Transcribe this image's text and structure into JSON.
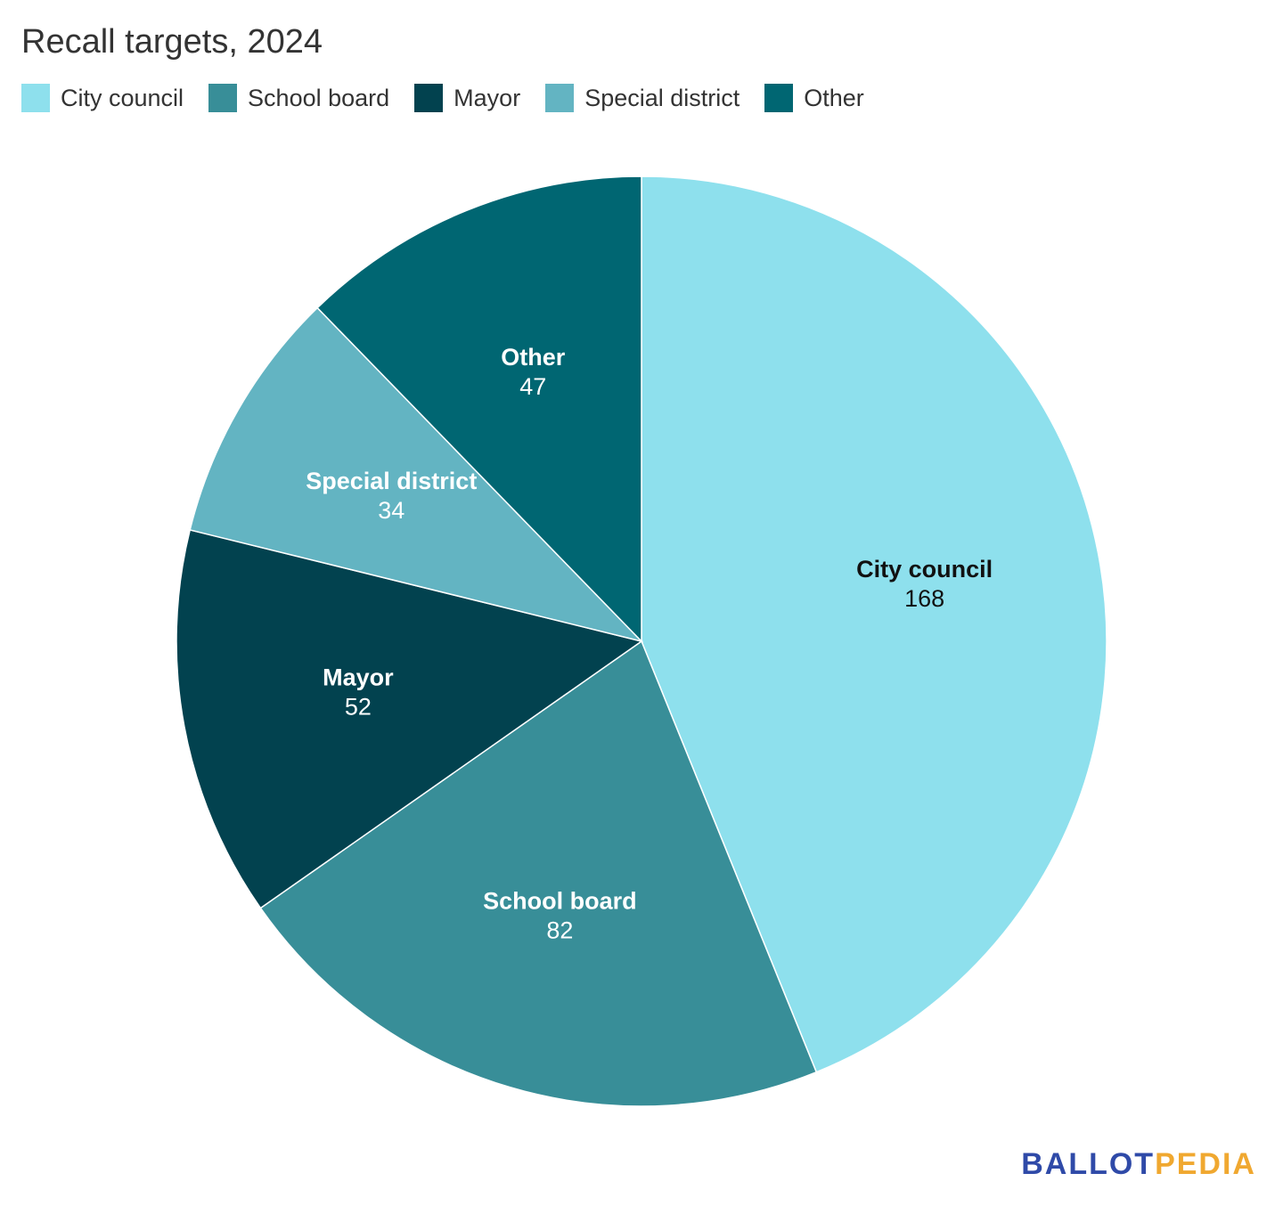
{
  "chart_data": {
    "type": "pie",
    "title": "Recall targets, 2024",
    "slices": [
      {
        "label": "City council",
        "value": 168,
        "color": "#8ee0ed",
        "text_color": "#111111"
      },
      {
        "label": "School board",
        "value": 82,
        "color": "#388e98",
        "text_color": "#ffffff"
      },
      {
        "label": "Mayor",
        "value": 52,
        "color": "#02424f",
        "text_color": "#ffffff"
      },
      {
        "label": "Special district",
        "value": 34,
        "color": "#63b4c2",
        "text_color": "#ffffff"
      },
      {
        "label": "Other",
        "value": 47,
        "color": "#006672",
        "text_color": "#ffffff"
      }
    ],
    "legend_position": "top-left"
  },
  "logo": {
    "part1": "BALLOT",
    "part2": "PEDIA"
  }
}
